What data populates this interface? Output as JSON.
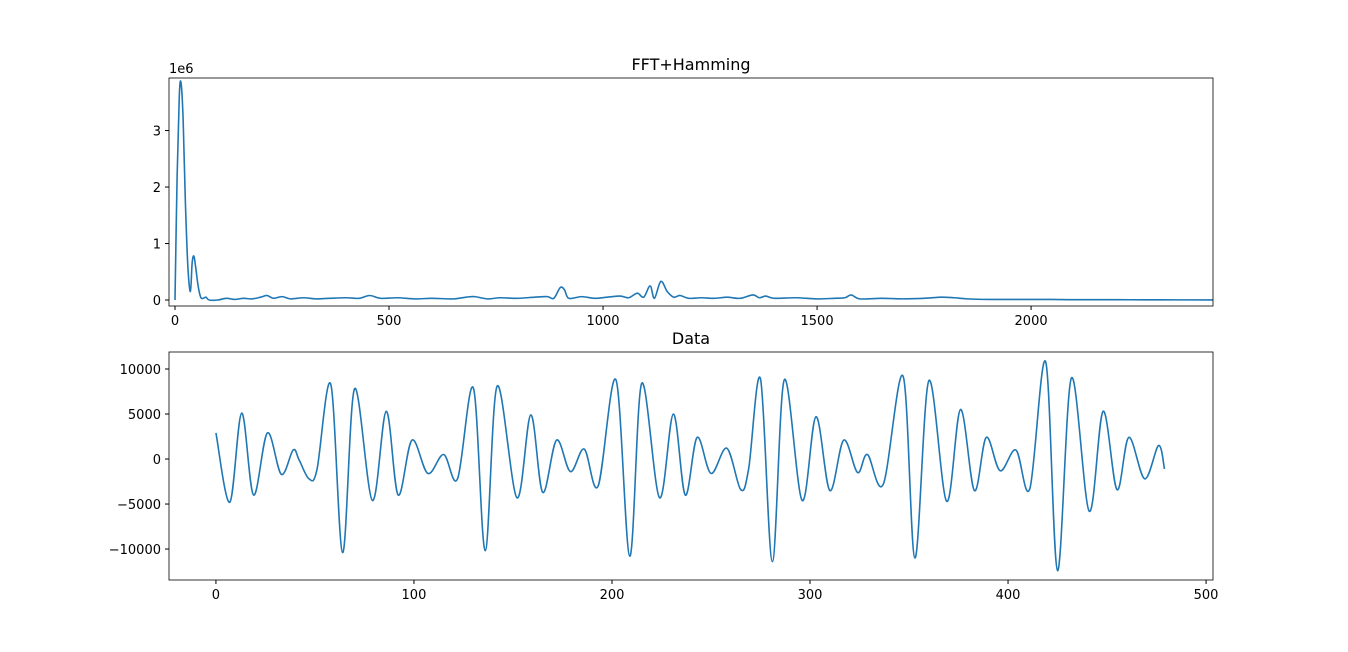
{
  "chart_data": [
    {
      "type": "line",
      "title": "FFT+Hamming",
      "y_offset_label": "1e6",
      "xlim": [
        -14,
        2425
      ],
      "ylim": [
        -0.106,
        3.93
      ],
      "xticks": [
        0,
        500,
        1000,
        1500,
        2000
      ],
      "yticks": [
        0,
        1,
        2,
        3
      ],
      "series": [
        {
          "color": "#1f77b4",
          "x": [
            0,
            5,
            10,
            14,
            19,
            24,
            30,
            36,
            40,
            44,
            48,
            54,
            60,
            66,
            72,
            80,
            100,
            120,
            140,
            160,
            180,
            200,
            215,
            230,
            250,
            270,
            300,
            330,
            360,
            400,
            430,
            455,
            480,
            520,
            560,
            600,
            650,
            680,
            700,
            730,
            760,
            800,
            840,
            870,
            885,
            900,
            910,
            920,
            950,
            980,
            1010,
            1040,
            1060,
            1080,
            1095,
            1110,
            1120,
            1135,
            1150,
            1165,
            1180,
            1200,
            1230,
            1260,
            1290,
            1320,
            1350,
            1365,
            1380,
            1400,
            1450,
            1500,
            1540,
            1565,
            1580,
            1600,
            1650,
            1700,
            1750,
            1790,
            1820,
            1850,
            1900,
            1950,
            2000,
            2050,
            2100,
            2200,
            2300,
            2425
          ],
          "values": [
            0,
            2.2,
            3.6,
            3.85,
            3.2,
            1.8,
            0.6,
            0.15,
            0.65,
            0.78,
            0.6,
            0.25,
            0.05,
            0.03,
            0.05,
            0,
            0,
            0.03,
            0.01,
            0.03,
            0.02,
            0.05,
            0.08,
            0.03,
            0.06,
            0.02,
            0.04,
            0.02,
            0.03,
            0.04,
            0.03,
            0.08,
            0.03,
            0.04,
            0.02,
            0.03,
            0.02,
            0.05,
            0.06,
            0.02,
            0.04,
            0.03,
            0.05,
            0.06,
            0.03,
            0.22,
            0.18,
            0.03,
            0.06,
            0.03,
            0.05,
            0.07,
            0.04,
            0.12,
            0.05,
            0.25,
            0.03,
            0.33,
            0.15,
            0.05,
            0.08,
            0.03,
            0.04,
            0.03,
            0.05,
            0.03,
            0.09,
            0.04,
            0.07,
            0.03,
            0.04,
            0.02,
            0.03,
            0.04,
            0.09,
            0.02,
            0.03,
            0.02,
            0.03,
            0.05,
            0.04,
            0.02,
            0.01,
            0.01,
            0.01,
            0.01,
            0.005,
            0.005,
            0.003,
            0.002
          ]
        }
      ]
    },
    {
      "type": "line",
      "title": "Data",
      "xlim": [
        -23.7,
        503.5
      ],
      "ylim": [
        -13440,
        11890
      ],
      "xticks": [
        0,
        100,
        200,
        300,
        400,
        500
      ],
      "yticks": [
        {
          "value": -10000,
          "label": "−10000"
        },
        {
          "value": -5000,
          "label": "−5000"
        },
        0,
        5000,
        10000
      ],
      "series": [
        {
          "color": "#1f77b4",
          "x": [
            0,
            7,
            13,
            19,
            26,
            33,
            39,
            42,
            47,
            51,
            58,
            64,
            70,
            79,
            86,
            92,
            99,
            107,
            115,
            122,
            130,
            136,
            142,
            152,
            159,
            165,
            172,
            179,
            186,
            193,
            202,
            209,
            215,
            224,
            231,
            237,
            243,
            250,
            258,
            265,
            269,
            275,
            281,
            287,
            296,
            303,
            310,
            317,
            324,
            329,
            337,
            347,
            353,
            360,
            369,
            376,
            383,
            389,
            396,
            404,
            411,
            419,
            425,
            432,
            441,
            448,
            455,
            461,
            469,
            476,
            479
          ],
          "values": [
            2900,
            -4800,
            5100,
            -4000,
            2900,
            -1700,
            1000,
            -100,
            -2200,
            -1200,
            8300,
            -10400,
            7800,
            -4600,
            5300,
            -4000,
            2100,
            -1600,
            500,
            -2200,
            7900,
            -10200,
            8100,
            -4300,
            4900,
            -3700,
            2100,
            -1400,
            1100,
            -3000,
            8800,
            -10800,
            8400,
            -4300,
            5000,
            -4000,
            2400,
            -1600,
            1200,
            -3400,
            -1100,
            8900,
            -11400,
            8800,
            -4600,
            4700,
            -3500,
            2100,
            -1500,
            500,
            -2800,
            9200,
            -11000,
            8700,
            -4700,
            5500,
            -3500,
            2400,
            -1300,
            1000,
            -3300,
            10800,
            -12400,
            9000,
            -5800,
            5300,
            -3400,
            2400,
            -2200,
            1500,
            -1100
          ]
        }
      ]
    }
  ]
}
